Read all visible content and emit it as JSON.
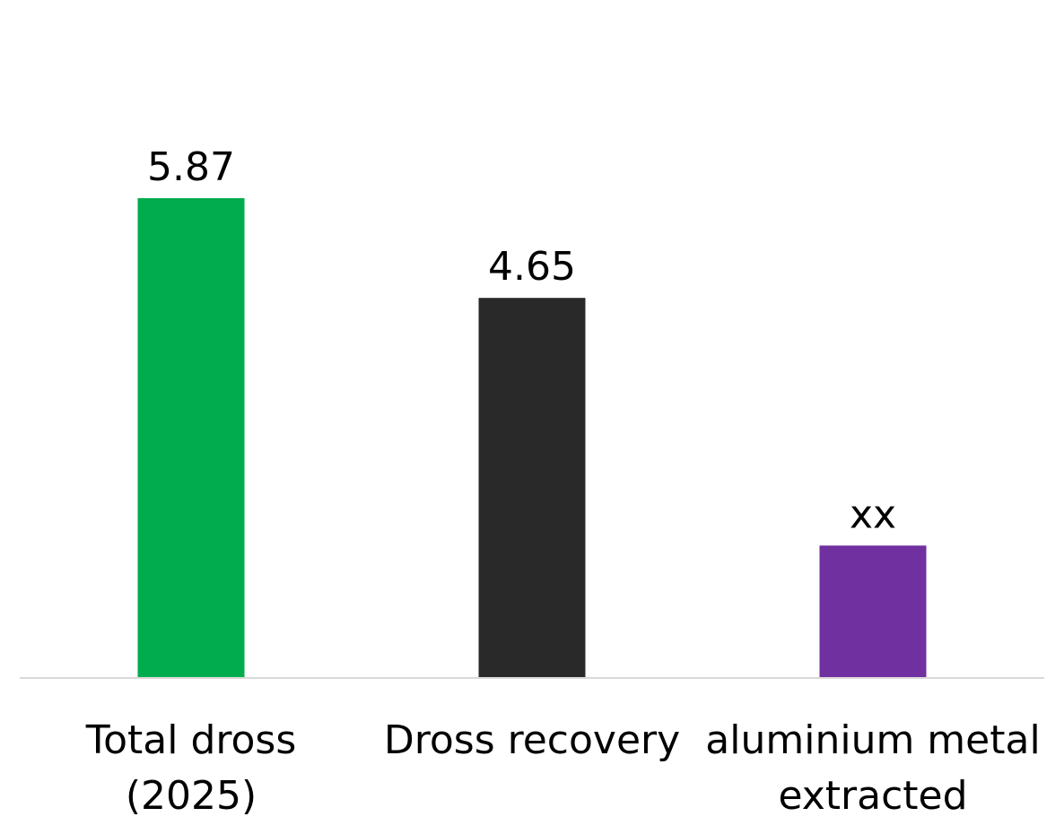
{
  "chart_data": {
    "type": "bar",
    "categories": [
      [
        "Total dross",
        "(2025)"
      ],
      [
        "Dross recovery"
      ],
      [
        "aluminium metal",
        "extracted"
      ]
    ],
    "values": [
      5.87,
      4.65,
      1.62
    ],
    "data_labels": [
      "5.87",
      "4.65",
      "xx"
    ],
    "colors": [
      "#00AC4E",
      "#292929",
      "#7030A0"
    ],
    "title": "",
    "xlabel": "",
    "ylabel": "",
    "ylim": [
      0,
      7
    ],
    "grid": false,
    "legend": "none",
    "baseline_color": "#D9D9D9"
  }
}
